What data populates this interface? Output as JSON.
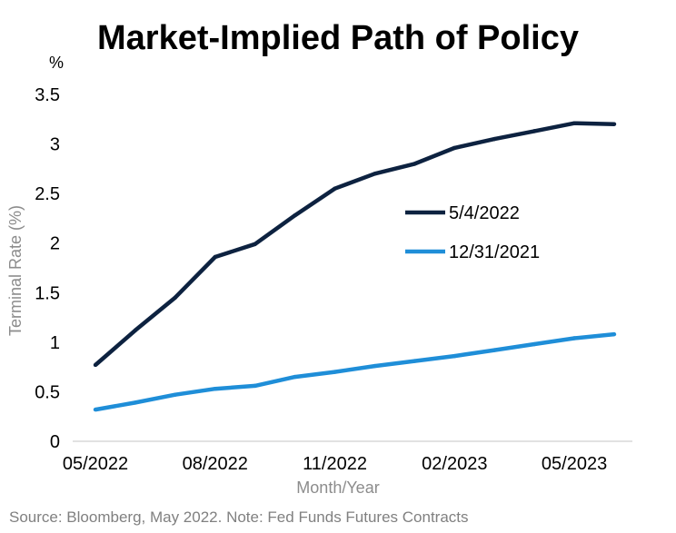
{
  "chart_data": {
    "type": "line",
    "title": "Market-Implied Path of Policy",
    "unit_label": "%",
    "xlabel": "Month/Year",
    "ylabel": "Terminal Rate (%)",
    "ylim": [
      0,
      3.5
    ],
    "yticks": [
      "0",
      "0.5",
      "1",
      "1.5",
      "2",
      "2.5",
      "3",
      "3.5"
    ],
    "categories": [
      "05/2022",
      "06/2022",
      "07/2022",
      "08/2022",
      "09/2022",
      "10/2022",
      "11/2022",
      "12/2022",
      "01/2023",
      "02/2023",
      "03/2023",
      "04/2023",
      "05/2023",
      "06/2023"
    ],
    "xtick_labels": [
      "05/2022",
      "08/2022",
      "11/2022",
      "02/2023",
      "05/2023"
    ],
    "series": [
      {
        "name": "5/4/2022",
        "color": "#0d2240",
        "values": [
          0.77,
          1.12,
          1.45,
          1.86,
          1.99,
          2.28,
          2.55,
          2.7,
          2.8,
          2.96,
          3.05,
          3.13,
          3.21,
          3.2
        ]
      },
      {
        "name": "12/31/2021",
        "color": "#1f8ed8",
        "values": [
          0.32,
          0.39,
          0.47,
          0.53,
          0.56,
          0.65,
          0.7,
          0.76,
          0.81,
          0.86,
          0.92,
          0.98,
          1.04,
          1.08
        ]
      }
    ],
    "grid": false,
    "legend_position": "right-middle",
    "source": "Source: Bloomberg, May 2022. Note: Fed Funds Futures Contracts"
  }
}
